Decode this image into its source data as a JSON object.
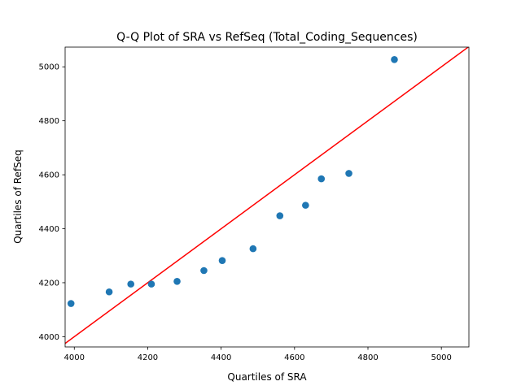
{
  "chart_data": {
    "type": "scatter",
    "title": "Q-Q Plot of SRA vs RefSeq (Total_Coding_Sequences)",
    "xlabel": "Quartiles of SRA",
    "ylabel": "Quartiles of RefSeq",
    "xlim": [
      3975,
      5075
    ],
    "ylim": [
      3962,
      5073
    ],
    "xticks": [
      "4000",
      "4200",
      "4400",
      "4600",
      "4800",
      "5000"
    ],
    "yticks": [
      "4000",
      "4200",
      "4400",
      "4600",
      "4800",
      "5000"
    ],
    "points": [
      {
        "x": 3991,
        "y": 4123
      },
      {
        "x": 4095,
        "y": 4166
      },
      {
        "x": 4154,
        "y": 4195
      },
      {
        "x": 4210,
        "y": 4195
      },
      {
        "x": 4280,
        "y": 4205
      },
      {
        "x": 4353,
        "y": 4245
      },
      {
        "x": 4403,
        "y": 4282
      },
      {
        "x": 4487,
        "y": 4326
      },
      {
        "x": 4560,
        "y": 4448
      },
      {
        "x": 4630,
        "y": 4487
      },
      {
        "x": 4673,
        "y": 4585
      },
      {
        "x": 4748,
        "y": 4605
      },
      {
        "x": 4872,
        "y": 5027
      }
    ],
    "reference_line": {
      "type": "y=x",
      "color": "#ff0000"
    },
    "marker_color": "#1f77b4",
    "grid": false,
    "legend": "none"
  }
}
